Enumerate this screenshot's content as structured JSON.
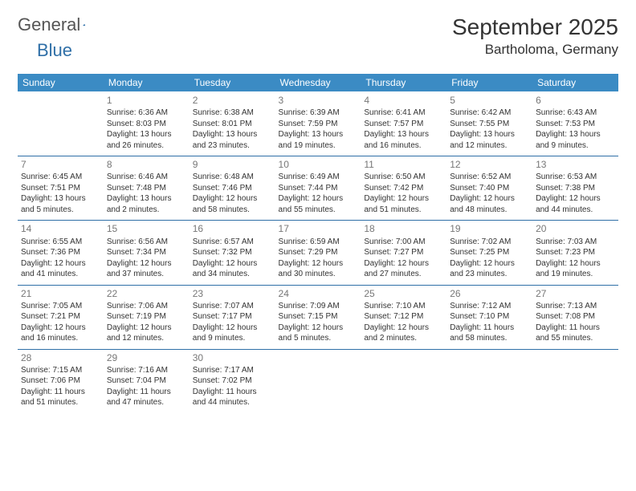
{
  "brand": {
    "text1": "General",
    "text2": "Blue"
  },
  "title": "September 2025",
  "location": "Bartholoma, Germany",
  "colors": {
    "header_bg": "#3b8bc4",
    "header_text": "#ffffff",
    "accent_line": "#2f6fa7",
    "daynum": "#777777",
    "body_text": "#333333",
    "background": "#ffffff"
  },
  "day_headers": [
    "Sunday",
    "Monday",
    "Tuesday",
    "Wednesday",
    "Thursday",
    "Friday",
    "Saturday"
  ],
  "weeks": [
    [
      null,
      {
        "n": "1",
        "sr": "Sunrise: 6:36 AM",
        "ss": "Sunset: 8:03 PM",
        "dl": "Daylight: 13 hours and 26 minutes."
      },
      {
        "n": "2",
        "sr": "Sunrise: 6:38 AM",
        "ss": "Sunset: 8:01 PM",
        "dl": "Daylight: 13 hours and 23 minutes."
      },
      {
        "n": "3",
        "sr": "Sunrise: 6:39 AM",
        "ss": "Sunset: 7:59 PM",
        "dl": "Daylight: 13 hours and 19 minutes."
      },
      {
        "n": "4",
        "sr": "Sunrise: 6:41 AM",
        "ss": "Sunset: 7:57 PM",
        "dl": "Daylight: 13 hours and 16 minutes."
      },
      {
        "n": "5",
        "sr": "Sunrise: 6:42 AM",
        "ss": "Sunset: 7:55 PM",
        "dl": "Daylight: 13 hours and 12 minutes."
      },
      {
        "n": "6",
        "sr": "Sunrise: 6:43 AM",
        "ss": "Sunset: 7:53 PM",
        "dl": "Daylight: 13 hours and 9 minutes."
      }
    ],
    [
      {
        "n": "7",
        "sr": "Sunrise: 6:45 AM",
        "ss": "Sunset: 7:51 PM",
        "dl": "Daylight: 13 hours and 5 minutes."
      },
      {
        "n": "8",
        "sr": "Sunrise: 6:46 AM",
        "ss": "Sunset: 7:48 PM",
        "dl": "Daylight: 13 hours and 2 minutes."
      },
      {
        "n": "9",
        "sr": "Sunrise: 6:48 AM",
        "ss": "Sunset: 7:46 PM",
        "dl": "Daylight: 12 hours and 58 minutes."
      },
      {
        "n": "10",
        "sr": "Sunrise: 6:49 AM",
        "ss": "Sunset: 7:44 PM",
        "dl": "Daylight: 12 hours and 55 minutes."
      },
      {
        "n": "11",
        "sr": "Sunrise: 6:50 AM",
        "ss": "Sunset: 7:42 PM",
        "dl": "Daylight: 12 hours and 51 minutes."
      },
      {
        "n": "12",
        "sr": "Sunrise: 6:52 AM",
        "ss": "Sunset: 7:40 PM",
        "dl": "Daylight: 12 hours and 48 minutes."
      },
      {
        "n": "13",
        "sr": "Sunrise: 6:53 AM",
        "ss": "Sunset: 7:38 PM",
        "dl": "Daylight: 12 hours and 44 minutes."
      }
    ],
    [
      {
        "n": "14",
        "sr": "Sunrise: 6:55 AM",
        "ss": "Sunset: 7:36 PM",
        "dl": "Daylight: 12 hours and 41 minutes."
      },
      {
        "n": "15",
        "sr": "Sunrise: 6:56 AM",
        "ss": "Sunset: 7:34 PM",
        "dl": "Daylight: 12 hours and 37 minutes."
      },
      {
        "n": "16",
        "sr": "Sunrise: 6:57 AM",
        "ss": "Sunset: 7:32 PM",
        "dl": "Daylight: 12 hours and 34 minutes."
      },
      {
        "n": "17",
        "sr": "Sunrise: 6:59 AM",
        "ss": "Sunset: 7:29 PM",
        "dl": "Daylight: 12 hours and 30 minutes."
      },
      {
        "n": "18",
        "sr": "Sunrise: 7:00 AM",
        "ss": "Sunset: 7:27 PM",
        "dl": "Daylight: 12 hours and 27 minutes."
      },
      {
        "n": "19",
        "sr": "Sunrise: 7:02 AM",
        "ss": "Sunset: 7:25 PM",
        "dl": "Daylight: 12 hours and 23 minutes."
      },
      {
        "n": "20",
        "sr": "Sunrise: 7:03 AM",
        "ss": "Sunset: 7:23 PM",
        "dl": "Daylight: 12 hours and 19 minutes."
      }
    ],
    [
      {
        "n": "21",
        "sr": "Sunrise: 7:05 AM",
        "ss": "Sunset: 7:21 PM",
        "dl": "Daylight: 12 hours and 16 minutes."
      },
      {
        "n": "22",
        "sr": "Sunrise: 7:06 AM",
        "ss": "Sunset: 7:19 PM",
        "dl": "Daylight: 12 hours and 12 minutes."
      },
      {
        "n": "23",
        "sr": "Sunrise: 7:07 AM",
        "ss": "Sunset: 7:17 PM",
        "dl": "Daylight: 12 hours and 9 minutes."
      },
      {
        "n": "24",
        "sr": "Sunrise: 7:09 AM",
        "ss": "Sunset: 7:15 PM",
        "dl": "Daylight: 12 hours and 5 minutes."
      },
      {
        "n": "25",
        "sr": "Sunrise: 7:10 AM",
        "ss": "Sunset: 7:12 PM",
        "dl": "Daylight: 12 hours and 2 minutes."
      },
      {
        "n": "26",
        "sr": "Sunrise: 7:12 AM",
        "ss": "Sunset: 7:10 PM",
        "dl": "Daylight: 11 hours and 58 minutes."
      },
      {
        "n": "27",
        "sr": "Sunrise: 7:13 AM",
        "ss": "Sunset: 7:08 PM",
        "dl": "Daylight: 11 hours and 55 minutes."
      }
    ],
    [
      {
        "n": "28",
        "sr": "Sunrise: 7:15 AM",
        "ss": "Sunset: 7:06 PM",
        "dl": "Daylight: 11 hours and 51 minutes."
      },
      {
        "n": "29",
        "sr": "Sunrise: 7:16 AM",
        "ss": "Sunset: 7:04 PM",
        "dl": "Daylight: 11 hours and 47 minutes."
      },
      {
        "n": "30",
        "sr": "Sunrise: 7:17 AM",
        "ss": "Sunset: 7:02 PM",
        "dl": "Daylight: 11 hours and 44 minutes."
      },
      null,
      null,
      null,
      null
    ]
  ]
}
